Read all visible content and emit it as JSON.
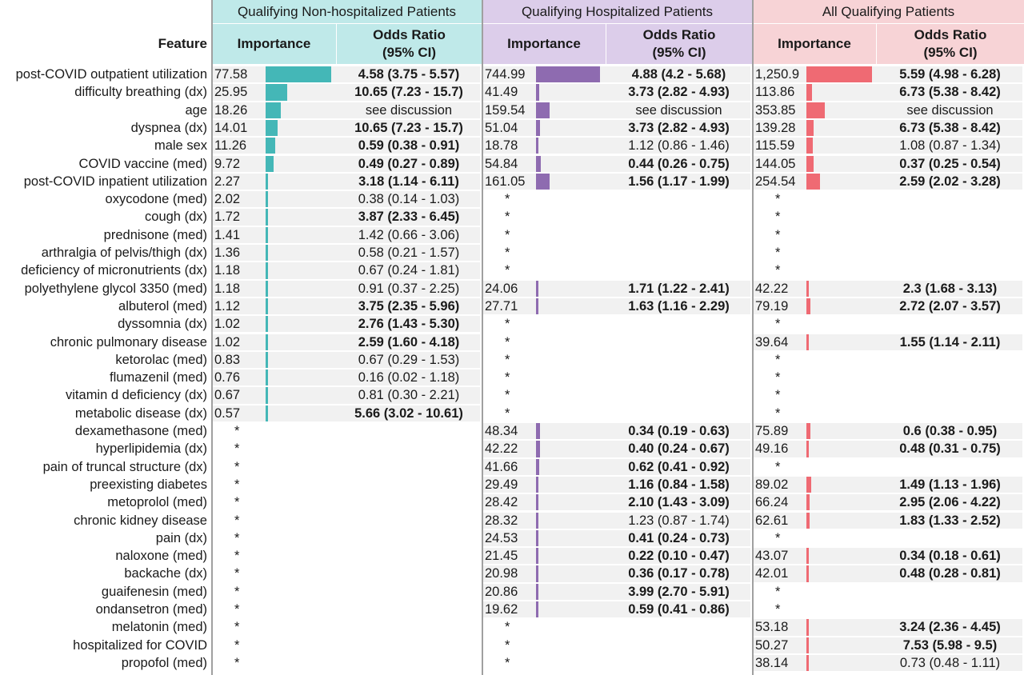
{
  "feature_header": "Feature",
  "groups": [
    {
      "key": "nonhosp",
      "title": "Qualifying Non-hospitalized Patients",
      "importance_label": "Importance",
      "or_label": "Odds Ratio\n(95% CI)",
      "bar_color": "#44b7b7",
      "head_bg": "#bfe9e9"
    },
    {
      "key": "hosp",
      "title": "Qualifying Hospitalized Patients",
      "importance_label": "Importance",
      "or_label": "Odds Ratio\n(95% CI)",
      "bar_color": "#8e6bb0",
      "head_bg": "#dccdea"
    },
    {
      "key": "all",
      "title": "All Qualifying Patients",
      "importance_label": "Importance",
      "or_label": "Odds Ratio\n(95% CI)",
      "bar_color": "#ef6a73",
      "head_bg": "#f7d3d6"
    }
  ],
  "chart_data": {
    "type": "table",
    "bar_max": {
      "nonhosp": 77.58,
      "hosp": 744.99,
      "all": 1250.9
    },
    "rows": [
      {
        "feature": "post-COVID outpatient utilization",
        "nonhosp": {
          "imp": "77.58",
          "v": 77.58,
          "or": "4.58 (3.75 - 5.57)",
          "sig": true
        },
        "hosp": {
          "imp": "744.99",
          "v": 744.99,
          "or": "4.88 (4.2 - 5.68)",
          "sig": true
        },
        "all": {
          "imp": "1,250.9",
          "v": 1250.9,
          "or": "5.59 (4.98 - 6.28)",
          "sig": true
        }
      },
      {
        "feature": "difficulty breathing (dx)",
        "nonhosp": {
          "imp": "25.95",
          "v": 25.95,
          "or": "10.65 (7.23 - 15.7)",
          "sig": true
        },
        "hosp": {
          "imp": "41.49",
          "v": 41.49,
          "or": "3.73 (2.82 - 4.93)",
          "sig": true
        },
        "all": {
          "imp": "113.86",
          "v": 113.86,
          "or": "6.73 (5.38 - 8.42)",
          "sig": true
        }
      },
      {
        "feature": "age",
        "nonhosp": {
          "imp": "18.26",
          "v": 18.26,
          "or": "see discussion",
          "sig": false
        },
        "hosp": {
          "imp": "159.54",
          "v": 159.54,
          "or": "see discussion",
          "sig": false
        },
        "all": {
          "imp": "353.85",
          "v": 353.85,
          "or": "see discussion",
          "sig": false
        }
      },
      {
        "feature": "dyspnea (dx)",
        "nonhosp": {
          "imp": "14.01",
          "v": 14.01,
          "or": "10.65 (7.23 - 15.7)",
          "sig": true
        },
        "hosp": {
          "imp": "51.04",
          "v": 51.04,
          "or": "3.73 (2.82 - 4.93)",
          "sig": true
        },
        "all": {
          "imp": "139.28",
          "v": 139.28,
          "or": "6.73 (5.38 - 8.42)",
          "sig": true
        }
      },
      {
        "feature": "male sex",
        "nonhosp": {
          "imp": "11.26",
          "v": 11.26,
          "or": "0.59 (0.38 - 0.91)",
          "sig": true
        },
        "hosp": {
          "imp": "18.78",
          "v": 18.78,
          "or": "1.12 (0.86 - 1.46)",
          "sig": false
        },
        "all": {
          "imp": "115.59",
          "v": 115.59,
          "or": "1.08 (0.87 - 1.34)",
          "sig": false
        }
      },
      {
        "feature": "COVID vaccine (med)",
        "nonhosp": {
          "imp": "9.72",
          "v": 9.72,
          "or": "0.49 (0.27 - 0.89)",
          "sig": true
        },
        "hosp": {
          "imp": "54.84",
          "v": 54.84,
          "or": "0.44 (0.26 - 0.75)",
          "sig": true
        },
        "all": {
          "imp": "144.05",
          "v": 144.05,
          "or": "0.37 (0.25 - 0.54)",
          "sig": true
        }
      },
      {
        "feature": "post-COVID inpatient utilization",
        "nonhosp": {
          "imp": "2.27",
          "v": 2.27,
          "or": "3.18 (1.14 - 6.11)",
          "sig": true
        },
        "hosp": {
          "imp": "161.05",
          "v": 161.05,
          "or": "1.56 (1.17 - 1.99)",
          "sig": true
        },
        "all": {
          "imp": "254.54",
          "v": 254.54,
          "or": "2.59 (2.02 - 3.28)",
          "sig": true
        }
      },
      {
        "feature": "oxycodone (med)",
        "nonhosp": {
          "imp": "2.02",
          "v": 2.02,
          "or": "0.38 (0.14 - 1.03)",
          "sig": false
        },
        "hosp": {
          "imp": "*"
        },
        "all": {
          "imp": "*"
        }
      },
      {
        "feature": "cough (dx)",
        "nonhosp": {
          "imp": "1.72",
          "v": 1.72,
          "or": "3.87 (2.33 - 6.45)",
          "sig": true
        },
        "hosp": {
          "imp": "*"
        },
        "all": {
          "imp": "*"
        }
      },
      {
        "feature": "prednisone (med)",
        "nonhosp": {
          "imp": "1.41",
          "v": 1.41,
          "or": "1.42 (0.66 - 3.06)",
          "sig": false
        },
        "hosp": {
          "imp": "*"
        },
        "all": {
          "imp": "*"
        }
      },
      {
        "feature": "arthralgia of pelvis/thigh (dx)",
        "nonhosp": {
          "imp": "1.36",
          "v": 1.36,
          "or": "0.58 (0.21 - 1.57)",
          "sig": false
        },
        "hosp": {
          "imp": "*"
        },
        "all": {
          "imp": "*"
        }
      },
      {
        "feature": "deficiency of micronutrients (dx)",
        "nonhosp": {
          "imp": "1.18",
          "v": 1.18,
          "or": "0.67 (0.24 - 1.81)",
          "sig": false
        },
        "hosp": {
          "imp": "*"
        },
        "all": {
          "imp": "*"
        }
      },
      {
        "feature": "polyethylene glycol 3350 (med)",
        "nonhosp": {
          "imp": "1.18",
          "v": 1.18,
          "or": "0.91 (0.37 - 2.25)",
          "sig": false
        },
        "hosp": {
          "imp": "24.06",
          "v": 24.06,
          "or": "1.71 (1.22 - 2.41)",
          "sig": true
        },
        "all": {
          "imp": "42.22",
          "v": 42.22,
          "or": "2.3 (1.68 - 3.13)",
          "sig": true
        }
      },
      {
        "feature": "albuterol (med)",
        "nonhosp": {
          "imp": "1.12",
          "v": 1.12,
          "or": "3.75 (2.35 - 5.96)",
          "sig": true
        },
        "hosp": {
          "imp": "27.71",
          "v": 27.71,
          "or": "1.63 (1.16 - 2.29)",
          "sig": true
        },
        "all": {
          "imp": "79.19",
          "v": 79.19,
          "or": "2.72 (2.07 - 3.57)",
          "sig": true
        }
      },
      {
        "feature": "dyssomnia (dx)",
        "nonhosp": {
          "imp": "1.02",
          "v": 1.02,
          "or": "2.76 (1.43 - 5.30)",
          "sig": true
        },
        "hosp": {
          "imp": "*"
        },
        "all": {
          "imp": "*"
        }
      },
      {
        "feature": "chronic pulmonary disease",
        "nonhosp": {
          "imp": "1.02",
          "v": 1.02,
          "or": "2.59 (1.60 - 4.18)",
          "sig": true
        },
        "hosp": {
          "imp": "*"
        },
        "all": {
          "imp": "39.64",
          "v": 39.64,
          "or": "1.55 (1.14 - 2.11)",
          "sig": true
        }
      },
      {
        "feature": "ketorolac (med)",
        "nonhosp": {
          "imp": "0.83",
          "v": 0.83,
          "or": "0.67 (0.29 - 1.53)",
          "sig": false
        },
        "hosp": {
          "imp": "*"
        },
        "all": {
          "imp": "*"
        }
      },
      {
        "feature": "flumazenil (med)",
        "nonhosp": {
          "imp": "0.76",
          "v": 0.76,
          "or": "0.16 (0.02 - 1.18)",
          "sig": false
        },
        "hosp": {
          "imp": "*"
        },
        "all": {
          "imp": "*"
        }
      },
      {
        "feature": "vitamin d deficiency (dx)",
        "nonhosp": {
          "imp": "0.67",
          "v": 0.67,
          "or": "0.81 (0.30 - 2.21)",
          "sig": false
        },
        "hosp": {
          "imp": "*"
        },
        "all": {
          "imp": "*"
        }
      },
      {
        "feature": "metabolic disease (dx)",
        "nonhosp": {
          "imp": "0.57",
          "v": 0.57,
          "or": "5.66 (3.02 - 10.61)",
          "sig": true
        },
        "hosp": {
          "imp": "*"
        },
        "all": {
          "imp": "*"
        }
      },
      {
        "feature": "dexamethasone (med)",
        "nonhosp": {
          "imp": "*"
        },
        "hosp": {
          "imp": "48.34",
          "v": 48.34,
          "or": "0.34 (0.19 - 0.63)",
          "sig": true
        },
        "all": {
          "imp": "75.89",
          "v": 75.89,
          "or": "0.6 (0.38 - 0.95)",
          "sig": true
        }
      },
      {
        "feature": "hyperlipidemia (dx)",
        "nonhosp": {
          "imp": "*"
        },
        "hosp": {
          "imp": "42.22",
          "v": 42.22,
          "or": "0.40 (0.24 - 0.67)",
          "sig": true
        },
        "all": {
          "imp": "49.16",
          "v": 49.16,
          "or": "0.48 (0.31 - 0.75)",
          "sig": true
        }
      },
      {
        "feature": "pain of truncal structure (dx)",
        "nonhosp": {
          "imp": "*"
        },
        "hosp": {
          "imp": "41.66",
          "v": 41.66,
          "or": "0.62 (0.41 - 0.92)",
          "sig": true
        },
        "all": {
          "imp": "*"
        }
      },
      {
        "feature": "preexisting diabetes",
        "nonhosp": {
          "imp": "*"
        },
        "hosp": {
          "imp": "29.49",
          "v": 29.49,
          "or": "1.16 (0.84 - 1.58)",
          "sig": true
        },
        "all": {
          "imp": "89.02",
          "v": 89.02,
          "or": "1.49 (1.13 - 1.96)",
          "sig": true
        }
      },
      {
        "feature": "metoprolol (med)",
        "nonhosp": {
          "imp": "*"
        },
        "hosp": {
          "imp": "28.42",
          "v": 28.42,
          "or": "2.10 (1.43 - 3.09)",
          "sig": true
        },
        "all": {
          "imp": "66.24",
          "v": 66.24,
          "or": "2.95 (2.06 - 4.22)",
          "sig": true
        }
      },
      {
        "feature": "chronic kidney disease",
        "nonhosp": {
          "imp": "*"
        },
        "hosp": {
          "imp": "28.32",
          "v": 28.32,
          "or": "1.23 (0.87 - 1.74)",
          "sig": false
        },
        "all": {
          "imp": "62.61",
          "v": 62.61,
          "or": "1.83 (1.33 - 2.52)",
          "sig": true
        }
      },
      {
        "feature": "pain (dx)",
        "nonhosp": {
          "imp": "*"
        },
        "hosp": {
          "imp": "24.53",
          "v": 24.53,
          "or": "0.41 (0.24 - 0.73)",
          "sig": true
        },
        "all": {
          "imp": "*"
        }
      },
      {
        "feature": "naloxone (med)",
        "nonhosp": {
          "imp": "*"
        },
        "hosp": {
          "imp": "21.45",
          "v": 21.45,
          "or": "0.22 (0.10 - 0.47)",
          "sig": true
        },
        "all": {
          "imp": "43.07",
          "v": 43.07,
          "or": "0.34 (0.18 - 0.61)",
          "sig": true
        }
      },
      {
        "feature": "backache (dx)",
        "nonhosp": {
          "imp": "*"
        },
        "hosp": {
          "imp": "20.98",
          "v": 20.98,
          "or": "0.36 (0.17 - 0.78)",
          "sig": true
        },
        "all": {
          "imp": "42.01",
          "v": 42.01,
          "or": "0.48 (0.28 - 0.81)",
          "sig": true
        }
      },
      {
        "feature": "guaifenesin (med)",
        "nonhosp": {
          "imp": "*"
        },
        "hosp": {
          "imp": "20.86",
          "v": 20.86,
          "or": "3.99 (2.70 - 5.91)",
          "sig": true
        },
        "all": {
          "imp": "*"
        }
      },
      {
        "feature": "ondansetron (med)",
        "nonhosp": {
          "imp": "*"
        },
        "hosp": {
          "imp": "19.62",
          "v": 19.62,
          "or": "0.59 (0.41 - 0.86)",
          "sig": true
        },
        "all": {
          "imp": "*"
        }
      },
      {
        "feature": "melatonin (med)",
        "nonhosp": {
          "imp": "*"
        },
        "hosp": {
          "imp": "*"
        },
        "all": {
          "imp": "53.18",
          "v": 53.18,
          "or": "3.24 (2.36 - 4.45)",
          "sig": true
        }
      },
      {
        "feature": "hospitalized for COVID",
        "nonhosp": {
          "imp": "*"
        },
        "hosp": {
          "imp": "*"
        },
        "all": {
          "imp": "50.27",
          "v": 50.27,
          "or": "7.53 (5.98 - 9.5)",
          "sig": true
        }
      },
      {
        "feature": "propofol (med)",
        "nonhosp": {
          "imp": "*"
        },
        "hosp": {
          "imp": "*"
        },
        "all": {
          "imp": "38.14",
          "v": 38.14,
          "or": "0.73 (0.48 - 1.11)",
          "sig": false
        }
      }
    ]
  }
}
